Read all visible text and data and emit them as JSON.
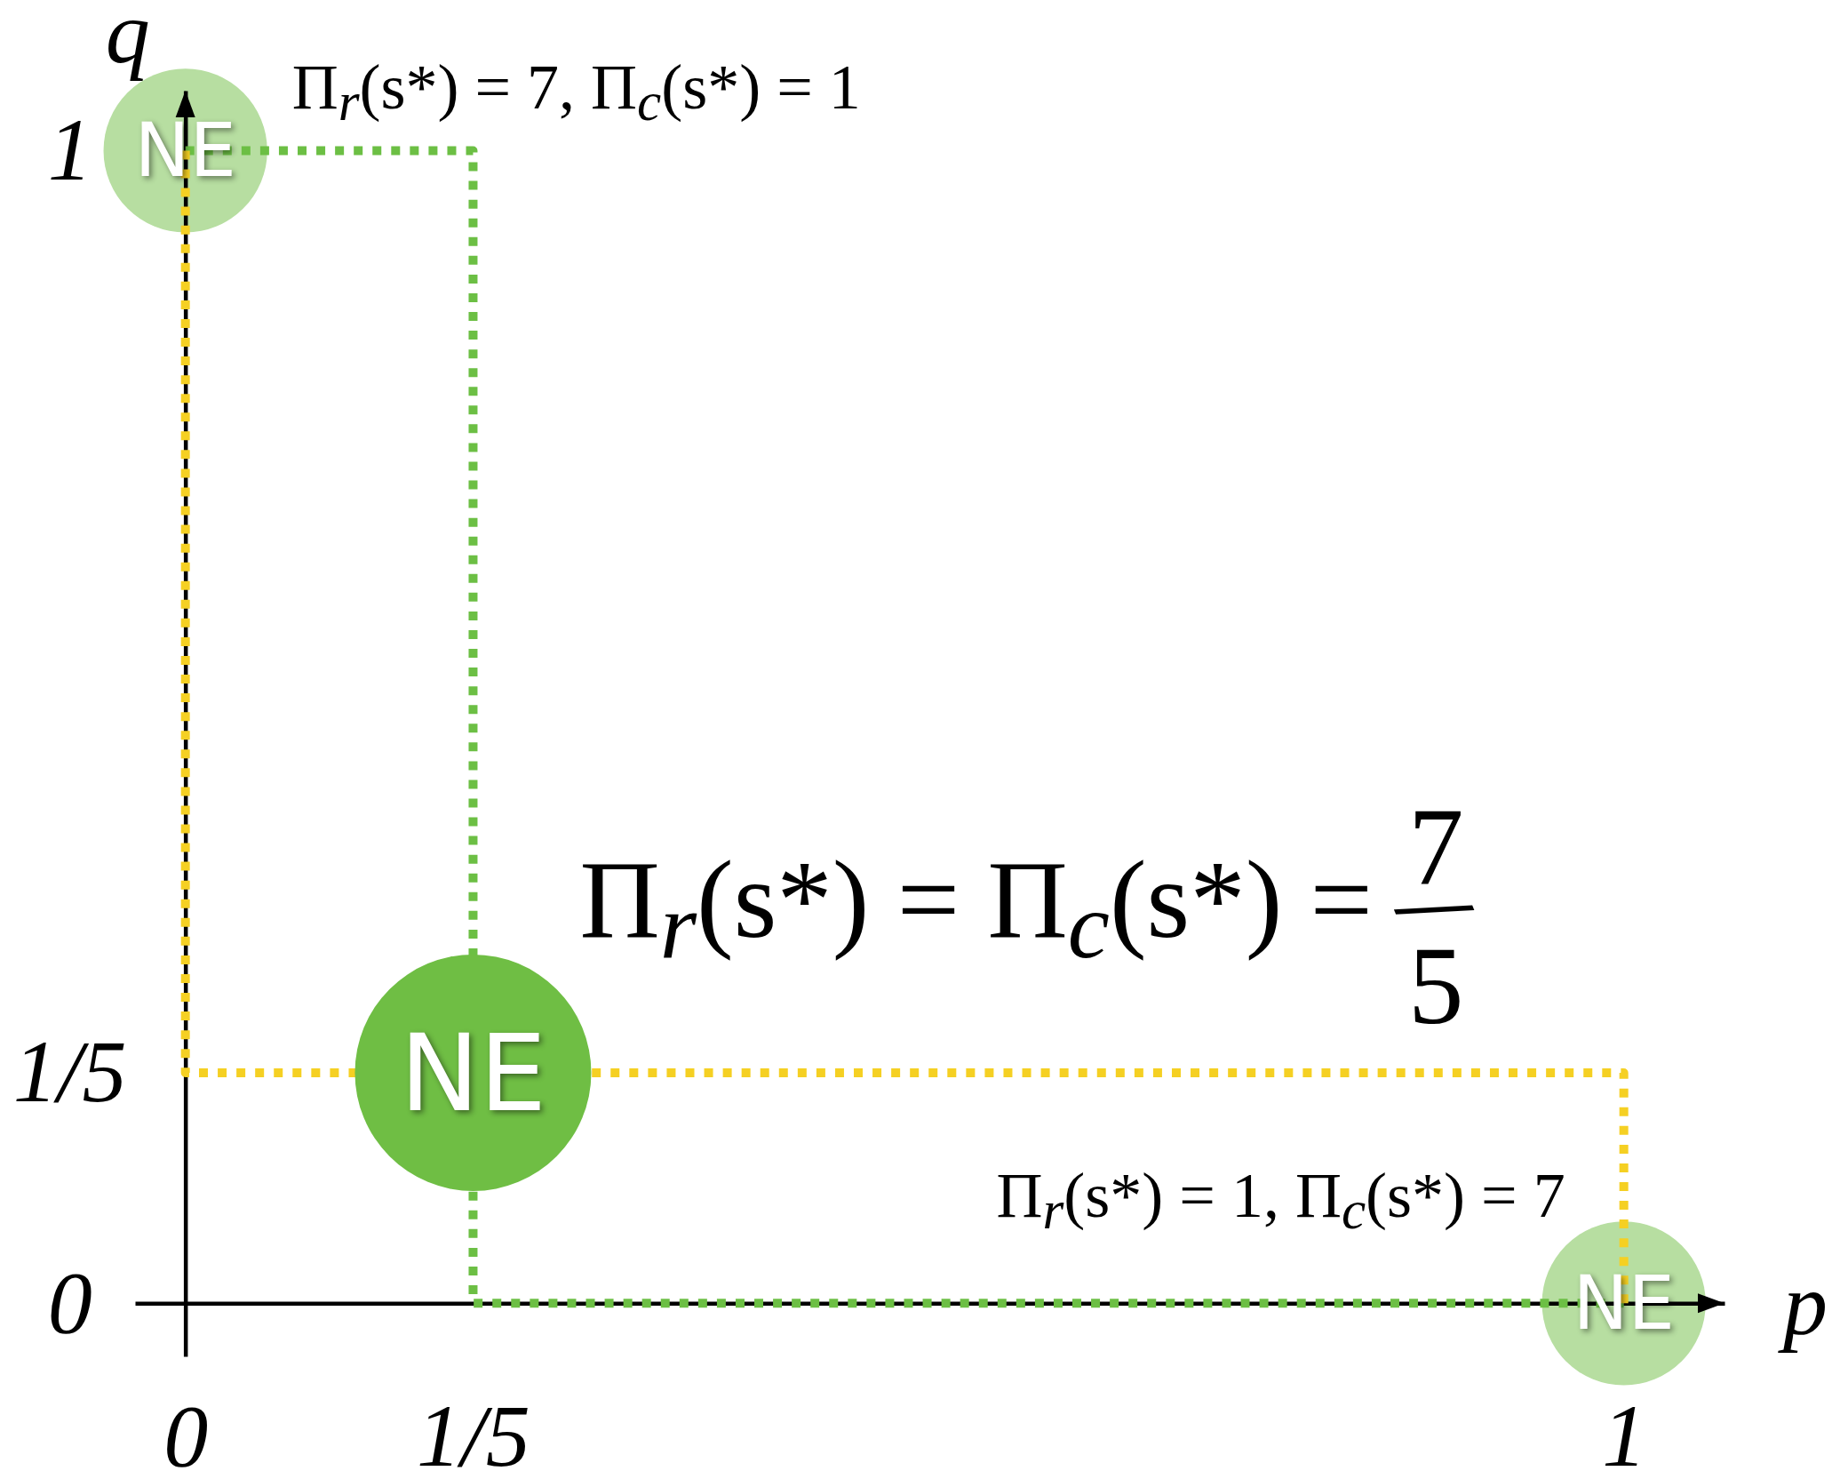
{
  "chart_data": {
    "type": "line",
    "xlabel": "p",
    "ylabel": "q",
    "xlim": [
      -0.035,
      1.07
    ],
    "ylim": [
      -0.046,
      1.052
    ],
    "xticks": [
      0,
      {
        "value": 0.2,
        "label": "1/5"
      },
      1
    ],
    "yticks": [
      0,
      {
        "value": 0.2,
        "label": "1/5"
      },
      1
    ],
    "line_style": "dotted",
    "series": [
      {
        "color": "#6cbf44",
        "x": [
          0,
          0.2,
          0.2,
          1
        ],
        "values": [
          1,
          1,
          0,
          0
        ]
      },
      {
        "color": "#f5d023",
        "x": [
          0,
          0,
          1,
          1
        ],
        "values": [
          1,
          0.2,
          0.2,
          0
        ]
      },
      {
        "type": "bubble",
        "x": [
          0,
          0.2,
          1
        ],
        "values": [
          1,
          0.2,
          0
        ],
        "sizes": [
          0.48,
          1,
          0.48
        ],
        "colors": [
          "#b7dea1",
          "#6fbe44",
          "#b7dea1"
        ],
        "value_labels": [
          "NE",
          "NE",
          "NE"
        ]
      }
    ],
    "annotations": [
      {
        "text": "Π$_{r}$(s*) = 7, Π$_{c}$(s*) = 1",
        "x": 0,
        "y": 1
      },
      {
        "text": "Π$_{r}$(s*) = Π$_{c}$(s*) = 7/5",
        "x": 0.2,
        "y": 0.2
      },
      {
        "text": "Π$_{r}$(s*) = 1, Π$_{c}$(s*) = 7",
        "x": 1,
        "y": 0
      }
    ]
  }
}
